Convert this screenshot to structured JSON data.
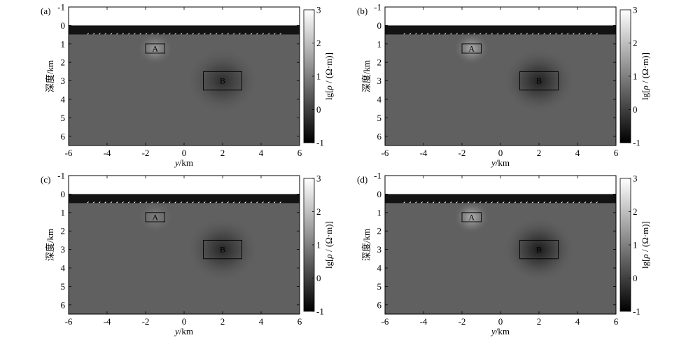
{
  "figure": {
    "colormap": [
      "#000000",
      "#ffffff"
    ],
    "panels": [
      {
        "label": "(a)",
        "chart_data": {
          "type": "heatmap",
          "xlabel": "y/km",
          "ylabel": "深度/km",
          "xlim": [
            -6,
            6
          ],
          "ylim": [
            -1,
            6.5
          ],
          "y_reversed": true,
          "x_ticks": [
            "-6",
            "-4",
            "-2",
            "0",
            "2",
            "4",
            "6"
          ],
          "y_ticks": [
            "-1",
            "0",
            "1",
            "2",
            "3",
            "4",
            "5",
            "6"
          ],
          "colorbar": {
            "label": "lg[ρ / (Ω·m)]",
            "range": [
              -1,
              3
            ],
            "ticks": [
              "-1",
              "0",
              "1",
              "2",
              "3"
            ]
          },
          "layers": [
            {
              "name": "air",
              "top": -1,
              "bottom": 0,
              "log_rho": 3
            },
            {
              "name": "sea water",
              "top": 0,
              "bottom": 0.5,
              "log_rho": -0.7
            },
            {
              "name": "background",
              "top": 0.5,
              "bottom": 6.5,
              "log_rho": 0.5
            }
          ],
          "stations": {
            "x_from": -5,
            "x_to": 5,
            "count": 34,
            "depth": 0.5
          },
          "anomalies": [
            {
              "label": "A",
              "x": [
                -2,
                -1
              ],
              "y": [
                1,
                1.5
              ],
              "log_rho_recovered": 1.5
            },
            {
              "label": "B",
              "x": [
                1,
                3
              ],
              "y": [
                2.5,
                3.5
              ],
              "log_rho_recovered": -0.3
            }
          ]
        }
      },
      {
        "label": "(b)",
        "chart_data": {
          "type": "heatmap",
          "xlabel": "y/km",
          "ylabel": "深度/km",
          "xlim": [
            -6,
            6
          ],
          "ylim": [
            -1,
            6.5
          ],
          "y_reversed": true,
          "x_ticks": [
            "-6",
            "-4",
            "-2",
            "0",
            "2",
            "4",
            "6"
          ],
          "y_ticks": [
            "-1",
            "0",
            "1",
            "2",
            "3",
            "4",
            "5",
            "6"
          ],
          "colorbar": {
            "label": "lg[ρ / (Ω·m)]",
            "range": [
              -1,
              3
            ],
            "ticks": [
              "-1",
              "0",
              "1",
              "2",
              "3"
            ]
          },
          "layers": [
            {
              "name": "air",
              "top": -1,
              "bottom": 0,
              "log_rho": 3
            },
            {
              "name": "sea water",
              "top": 0,
              "bottom": 0.5,
              "log_rho": -0.7
            },
            {
              "name": "background",
              "top": 0.5,
              "bottom": 6.5,
              "log_rho": 0.5
            }
          ],
          "stations": {
            "x_from": -5,
            "x_to": 5,
            "count": 34,
            "depth": 0.5
          },
          "anomalies": [
            {
              "label": "A",
              "x": [
                -2,
                -1
              ],
              "y": [
                1,
                1.5
              ],
              "log_rho_recovered": 1.7
            },
            {
              "label": "B",
              "x": [
                1,
                3
              ],
              "y": [
                2.5,
                3.5
              ],
              "log_rho_recovered": -0.5
            }
          ]
        }
      },
      {
        "label": "(c)",
        "chart_data": {
          "type": "heatmap",
          "xlabel": "y/km",
          "ylabel": "深度/km",
          "xlim": [
            -6,
            6
          ],
          "ylim": [
            -1,
            6.5
          ],
          "y_reversed": true,
          "x_ticks": [
            "-6",
            "-4",
            "-2",
            "0",
            "2",
            "4",
            "6"
          ],
          "y_ticks": [
            "-1",
            "0",
            "1",
            "2",
            "3",
            "4",
            "5",
            "6"
          ],
          "colorbar": {
            "label": "lg[ρ / (Ω·m)]",
            "range": [
              -1,
              3
            ],
            "ticks": [
              "-1",
              "0",
              "1",
              "2",
              "3"
            ]
          },
          "layers": [
            {
              "name": "air",
              "top": -1,
              "bottom": 0,
              "log_rho": 3
            },
            {
              "name": "sea water",
              "top": 0,
              "bottom": 0.5,
              "log_rho": -0.7
            },
            {
              "name": "background",
              "top": 0.5,
              "bottom": 6.5,
              "log_rho": 0.5
            }
          ],
          "stations": {
            "x_from": -5,
            "x_to": 5,
            "count": 34,
            "depth": 0.5
          },
          "anomalies": [
            {
              "label": "A",
              "x": [
                -2,
                -1
              ],
              "y": [
                1,
                1.5
              ],
              "log_rho_recovered": 1.0
            },
            {
              "label": "B",
              "x": [
                1,
                3
              ],
              "y": [
                2.5,
                3.5
              ],
              "log_rho_recovered": -0.4
            }
          ]
        }
      },
      {
        "label": "(d)",
        "chart_data": {
          "type": "heatmap",
          "xlabel": "y/km",
          "ylabel": "深度/km",
          "xlim": [
            -6,
            6
          ],
          "ylim": [
            -1,
            6.5
          ],
          "y_reversed": true,
          "x_ticks": [
            "-6",
            "-4",
            "-2",
            "0",
            "2",
            "4",
            "6"
          ],
          "y_ticks": [
            "-1",
            "0",
            "1",
            "2",
            "3",
            "4",
            "5",
            "6"
          ],
          "colorbar": {
            "label": "lg[ρ / (Ω·m)]",
            "range": [
              -1,
              3
            ],
            "ticks": [
              "-1",
              "0",
              "1",
              "2",
              "3"
            ]
          },
          "layers": [
            {
              "name": "air",
              "top": -1,
              "bottom": 0,
              "log_rho": 3
            },
            {
              "name": "sea water",
              "top": 0,
              "bottom": 0.5,
              "log_rho": -0.7
            },
            {
              "name": "background",
              "top": 0.5,
              "bottom": 6.5,
              "log_rho": 0.5
            }
          ],
          "stations": {
            "x_from": -5,
            "x_to": 5,
            "count": 34,
            "depth": 0.5
          },
          "anomalies": [
            {
              "label": "A",
              "x": [
                -2,
                -1
              ],
              "y": [
                1,
                1.5
              ],
              "log_rho_recovered": 1.8
            },
            {
              "label": "B",
              "x": [
                1,
                3
              ],
              "y": [
                2.5,
                3.5
              ],
              "log_rho_recovered": -0.6
            }
          ]
        }
      }
    ]
  }
}
